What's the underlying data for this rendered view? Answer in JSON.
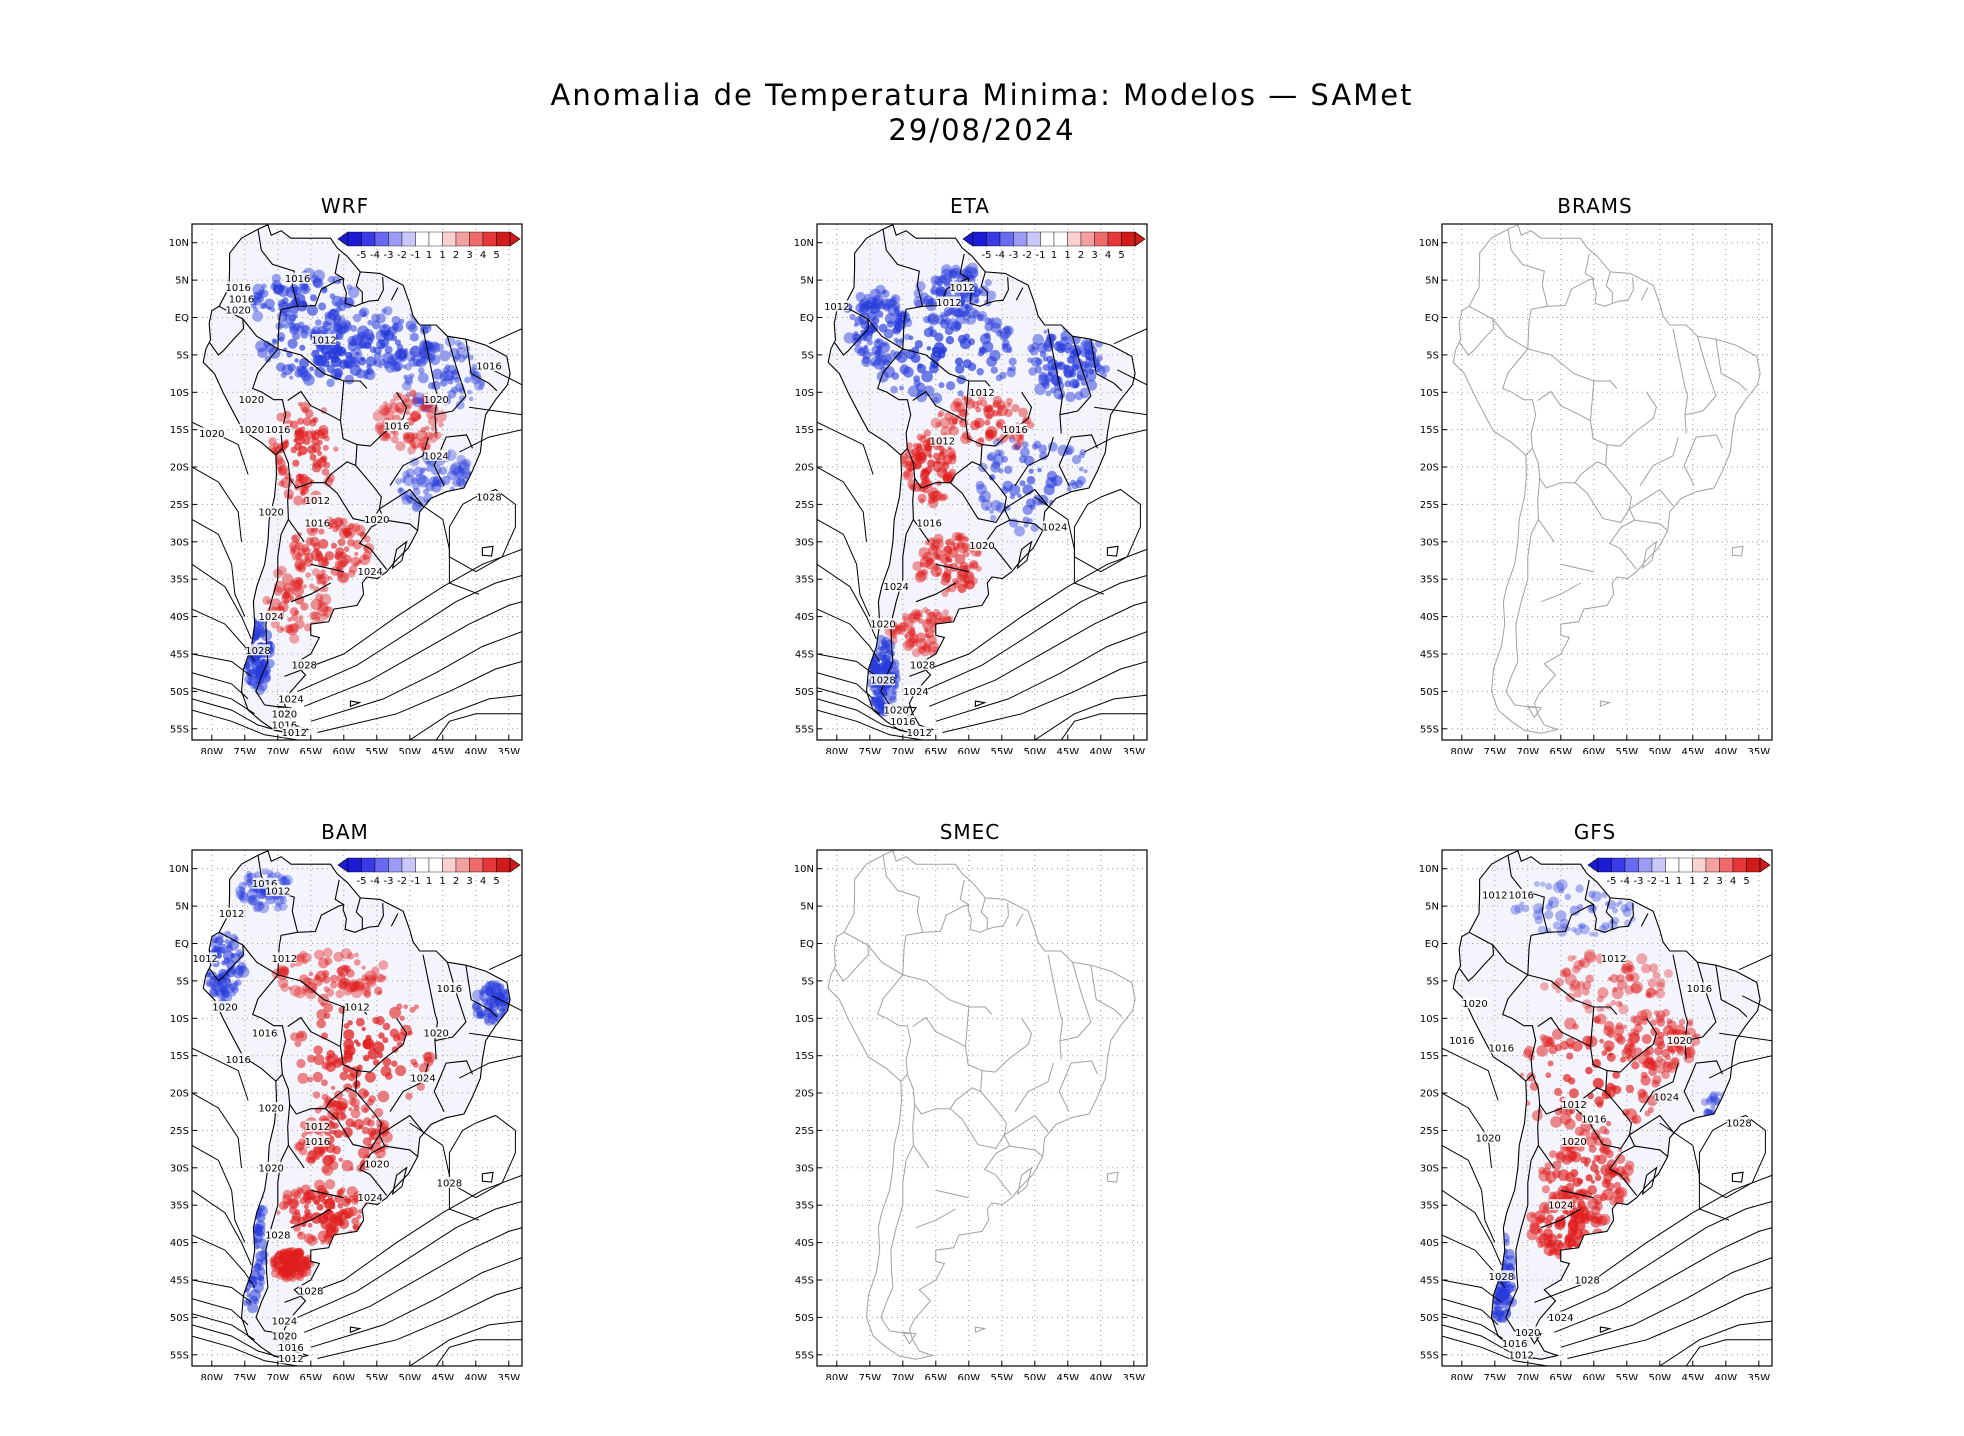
{
  "title": {
    "line1": "Anomalia de Temperatura Minima: Modelos — SAMet",
    "line2": "29/08/2024"
  },
  "axes": {
    "lat_labels": [
      "10N",
      "5N",
      "EQ",
      "5S",
      "10S",
      "15S",
      "20S",
      "25S",
      "30S",
      "35S",
      "40S",
      "45S",
      "50S",
      "55S"
    ],
    "lon_labels": [
      "80W",
      "75W",
      "70W",
      "65W",
      "60W",
      "55W",
      "50W",
      "45W",
      "40W",
      "35W"
    ],
    "lon_range": [
      -83,
      -33
    ],
    "lat_range": [
      -56.5,
      12.5
    ]
  },
  "colorbar": {
    "tick_labels": [
      "-5",
      "-4",
      "-3",
      "-2",
      "-1",
      "1",
      "1",
      "2",
      "3",
      "4",
      "5"
    ],
    "colors": [
      "#1b1bd6",
      "#3a3ae6",
      "#6a6af0",
      "#9b9bf5",
      "#c8c8fa",
      "#ffffff",
      "#ffffff",
      "#fad0d0",
      "#f5a0a0",
      "#ef6a6a",
      "#e63838",
      "#d11a1a"
    ]
  },
  "colors": {
    "cold": "#3344dd",
    "warm": "#e02424",
    "coast_data": "#000000",
    "coast_empty": "#a0a0a0"
  },
  "panels": [
    {
      "id": "wrf",
      "name": "WRF",
      "has_data": true,
      "contour_labels": [
        {
          "text": "1016",
          "lon": -67,
          "lat": 5.2
        },
        {
          "text": "1016",
          "lon": -76,
          "lat": 4
        },
        {
          "text": "1016",
          "lon": -75.5,
          "lat": 2.5
        },
        {
          "text": "1020",
          "lon": -76,
          "lat": 1
        },
        {
          "text": "1012",
          "lon": -63,
          "lat": -3
        },
        {
          "text": "1016",
          "lon": -38,
          "lat": -6.5
        },
        {
          "text": "1020",
          "lon": -74,
          "lat": -11
        },
        {
          "text": "1020",
          "lon": -46,
          "lat": -11
        },
        {
          "text": "1020",
          "lon": -80,
          "lat": -15.5
        },
        {
          "text": "1020",
          "lon": -74,
          "lat": -15
        },
        {
          "text": "1016",
          "lon": -70,
          "lat": -15
        },
        {
          "text": "1016",
          "lon": -52,
          "lat": -14.5
        },
        {
          "text": "1024",
          "lon": -46,
          "lat": -18.5
        },
        {
          "text": "1028",
          "lon": -38,
          "lat": -24
        },
        {
          "text": "1012",
          "lon": -64,
          "lat": -24.5
        },
        {
          "text": "1020",
          "lon": -71,
          "lat": -26
        },
        {
          "text": "1016",
          "lon": -64,
          "lat": -27.5
        },
        {
          "text": "1020",
          "lon": -55,
          "lat": -27
        },
        {
          "text": "1024",
          "lon": -56,
          "lat": -34
        },
        {
          "text": "1024",
          "lon": -71,
          "lat": -40
        },
        {
          "text": "1028",
          "lon": -73,
          "lat": -44.5
        },
        {
          "text": "1028",
          "lon": -66,
          "lat": -46.5
        },
        {
          "text": "1024",
          "lon": -68,
          "lat": -51
        },
        {
          "text": "1020",
          "lon": -69,
          "lat": -53
        },
        {
          "text": "1016",
          "lon": -69,
          "lat": -54.5
        },
        {
          "text": "1012",
          "lon": -67.5,
          "lat": -55.5
        }
      ],
      "anomaly_regions": [
        {
          "sign": "cold",
          "lon": -66,
          "lat": 2,
          "rlon": 8,
          "rlat": 4,
          "strength": 0.8
        },
        {
          "sign": "cold",
          "lon": -62,
          "lat": -5,
          "rlon": 11,
          "rlat": 4,
          "strength": 1.0
        },
        {
          "sign": "cold",
          "lon": -54,
          "lat": -3,
          "rlon": 9,
          "rlat": 4,
          "strength": 0.75
        },
        {
          "sign": "cold",
          "lon": -45,
          "lat": -8,
          "rlon": 6,
          "rlat": 5,
          "strength": 0.55
        },
        {
          "sign": "cold",
          "lon": -46,
          "lat": -22,
          "rlon": 6,
          "rlat": 4,
          "strength": 0.45
        },
        {
          "sign": "warm",
          "lon": -66,
          "lat": -18,
          "rlon": 5,
          "rlat": 7,
          "strength": 0.85
        },
        {
          "sign": "warm",
          "lon": -62,
          "lat": -31,
          "rlon": 6,
          "rlat": 4,
          "strength": 0.75
        },
        {
          "sign": "warm",
          "lon": -67,
          "lat": -38,
          "rlon": 5,
          "rlat": 5,
          "strength": 0.55
        },
        {
          "sign": "warm",
          "lon": -50,
          "lat": -14,
          "rlon": 5,
          "rlat": 4,
          "strength": 0.5
        },
        {
          "sign": "cold",
          "lon": -73,
          "lat": -45,
          "rlon": 2,
          "rlat": 5,
          "strength": 0.9
        }
      ]
    },
    {
      "id": "eta",
      "name": "ETA",
      "has_data": true,
      "contour_labels": [
        {
          "text": "1012",
          "lon": -80,
          "lat": 1.5
        },
        {
          "text": "1012",
          "lon": -61,
          "lat": 4
        },
        {
          "text": "1012",
          "lon": -63,
          "lat": 2
        },
        {
          "text": "1012",
          "lon": -58,
          "lat": -10
        },
        {
          "text": "1012",
          "lon": -64,
          "lat": -16.5
        },
        {
          "text": "1016",
          "lon": -53,
          "lat": -15
        },
        {
          "text": "1016",
          "lon": -66,
          "lat": -27.5
        },
        {
          "text": "1020",
          "lon": -58,
          "lat": -30.5
        },
        {
          "text": "1024",
          "lon": -47,
          "lat": -28
        },
        {
          "text": "1024",
          "lon": -71,
          "lat": -36
        },
        {
          "text": "1020",
          "lon": -73,
          "lat": -41
        },
        {
          "text": "1028",
          "lon": -67,
          "lat": -46.5
        },
        {
          "text": "1028",
          "lon": -73,
          "lat": -48.5
        },
        {
          "text": "1024",
          "lon": -68,
          "lat": -50
        },
        {
          "text": "1020",
          "lon": -71,
          "lat": -52.5
        },
        {
          "text": "1016",
          "lon": -70,
          "lat": -54
        },
        {
          "text": "1012",
          "lon": -67.5,
          "lat": -55.5
        }
      ],
      "anomaly_regions": [
        {
          "sign": "cold",
          "lon": -64,
          "lat": -5,
          "rlon": 12,
          "rlat": 6,
          "strength": 1.0
        },
        {
          "sign": "cold",
          "lon": -74,
          "lat": -1,
          "rlon": 5,
          "rlat": 5,
          "strength": 0.8
        },
        {
          "sign": "cold",
          "lon": -45,
          "lat": -6,
          "rlon": 6,
          "rlat": 5,
          "strength": 0.9
        },
        {
          "sign": "cold",
          "lon": -50,
          "lat": -22,
          "rlon": 9,
          "rlat": 7,
          "strength": 0.7
        },
        {
          "sign": "cold",
          "lon": -62,
          "lat": 3,
          "rlon": 6,
          "rlat": 4,
          "strength": 0.7
        },
        {
          "sign": "warm",
          "lon": -66,
          "lat": -20,
          "rlon": 4,
          "rlat": 5,
          "strength": 0.85
        },
        {
          "sign": "warm",
          "lon": -57,
          "lat": -14,
          "rlon": 8,
          "rlat": 4,
          "strength": 0.6
        },
        {
          "sign": "warm",
          "lon": -63,
          "lat": -33,
          "rlon": 5,
          "rlat": 4,
          "strength": 0.7
        },
        {
          "sign": "warm",
          "lon": -66,
          "lat": -42,
          "rlon": 6,
          "rlat": 3,
          "strength": 0.55
        },
        {
          "sign": "cold",
          "lon": -73,
          "lat": -48,
          "rlon": 2,
          "rlat": 5,
          "strength": 0.9
        }
      ]
    },
    {
      "id": "brams",
      "name": "BRAMS",
      "has_data": false,
      "contour_labels": [],
      "anomaly_regions": []
    },
    {
      "id": "bam",
      "name": "BAM",
      "has_data": true,
      "contour_labels": [
        {
          "text": "1016",
          "lon": -72,
          "lat": 8
        },
        {
          "text": "1012",
          "lon": -70,
          "lat": 7
        },
        {
          "text": "1012",
          "lon": -77,
          "lat": 4
        },
        {
          "text": "1012",
          "lon": -81,
          "lat": -2
        },
        {
          "text": "1012",
          "lon": -69,
          "lat": -2
        },
        {
          "text": "1020",
          "lon": -78,
          "lat": -8.5
        },
        {
          "text": "1012",
          "lon": -58,
          "lat": -8.5
        },
        {
          "text": "1016",
          "lon": -44,
          "lat": -6
        },
        {
          "text": "1016",
          "lon": -72,
          "lat": -12
        },
        {
          "text": "1020",
          "lon": -46,
          "lat": -12
        },
        {
          "text": "1016",
          "lon": -76,
          "lat": -15.5
        },
        {
          "text": "1024",
          "lon": -48,
          "lat": -18
        },
        {
          "text": "1020",
          "lon": -71,
          "lat": -22
        },
        {
          "text": "1012",
          "lon": -64,
          "lat": -24.5
        },
        {
          "text": "1016",
          "lon": -64,
          "lat": -26.5
        },
        {
          "text": "1020",
          "lon": -71,
          "lat": -30
        },
        {
          "text": "1020",
          "lon": -55,
          "lat": -29.5
        },
        {
          "text": "1028",
          "lon": -44,
          "lat": -32
        },
        {
          "text": "1024",
          "lon": -56,
          "lat": -34
        },
        {
          "text": "1028",
          "lon": -70,
          "lat": -39
        },
        {
          "text": "1028",
          "lon": -65,
          "lat": -46.5
        },
        {
          "text": "1024",
          "lon": -69,
          "lat": -50.5
        },
        {
          "text": "1020",
          "lon": -69,
          "lat": -52.5
        },
        {
          "text": "1016",
          "lon": -68,
          "lat": -54
        },
        {
          "text": "1012",
          "lon": -68,
          "lat": -55.5
        }
      ],
      "anomaly_regions": [
        {
          "sign": "warm",
          "lon": -57,
          "lat": -14,
          "rlon": 11,
          "rlat": 9,
          "strength": 1.0
        },
        {
          "sign": "warm",
          "lon": -62,
          "lat": -4,
          "rlon": 9,
          "rlat": 3,
          "strength": 0.55
        },
        {
          "sign": "warm",
          "lon": -60,
          "lat": -26,
          "rlon": 7,
          "rlat": 5,
          "strength": 0.9
        },
        {
          "sign": "warm",
          "lon": -63,
          "lat": -36,
          "rlon": 7,
          "rlat": 4,
          "strength": 0.95
        },
        {
          "sign": "warm",
          "lon": -68,
          "lat": -43,
          "rlon": 3,
          "rlat": 2,
          "strength": 0.8
        },
        {
          "sign": "cold",
          "lon": -78,
          "lat": -3,
          "rlon": 3,
          "rlat": 5,
          "strength": 0.7
        },
        {
          "sign": "cold",
          "lon": -74,
          "lat": -40,
          "rlon": 2,
          "rlat": 10,
          "strength": 0.9
        },
        {
          "sign": "cold",
          "lon": -37,
          "lat": -8,
          "rlon": 3,
          "rlat": 3,
          "strength": 0.6
        },
        {
          "sign": "cold",
          "lon": -72,
          "lat": 7,
          "rlon": 4,
          "rlat": 3,
          "strength": 0.4
        }
      ]
    },
    {
      "id": "smec",
      "name": "SMEC",
      "has_data": false,
      "contour_labels": [],
      "anomaly_regions": []
    },
    {
      "id": "gfs",
      "name": "GFS",
      "has_data": true,
      "contour_labels": [
        {
          "text": "1012",
          "lon": -75,
          "lat": 6.5
        },
        {
          "text": "1016",
          "lon": -71,
          "lat": 6.5
        },
        {
          "text": "1012",
          "lon": -57,
          "lat": -2
        },
        {
          "text": "1020",
          "lon": -78,
          "lat": -8
        },
        {
          "text": "1016",
          "lon": -44,
          "lat": -6
        },
        {
          "text": "1016",
          "lon": -80,
          "lat": -13
        },
        {
          "text": "1016",
          "lon": -74,
          "lat": -14
        },
        {
          "text": "1020",
          "lon": -47,
          "lat": -13
        },
        {
          "text": "1024",
          "lon": -49,
          "lat": -20.5
        },
        {
          "text": "1028",
          "lon": -38,
          "lat": -24
        },
        {
          "text": "1012",
          "lon": -63,
          "lat": -21.5
        },
        {
          "text": "1016",
          "lon": -60,
          "lat": -23.5
        },
        {
          "text": "1020",
          "lon": -63,
          "lat": -26.5
        },
        {
          "text": "1020",
          "lon": -76,
          "lat": -26
        },
        {
          "text": "1024",
          "lon": -65,
          "lat": -35
        },
        {
          "text": "1028",
          "lon": -74,
          "lat": -44.5
        },
        {
          "text": "1028",
          "lon": -61,
          "lat": -45
        },
        {
          "text": "1024",
          "lon": -65,
          "lat": -50
        },
        {
          "text": "1020",
          "lon": -70,
          "lat": -52
        },
        {
          "text": "1016",
          "lon": -72,
          "lat": -53.5
        },
        {
          "text": "1012",
          "lon": -71,
          "lat": -55
        }
      ],
      "anomaly_regions": [
        {
          "sign": "warm",
          "lon": -60,
          "lat": -18,
          "rlon": 11,
          "rlat": 8,
          "strength": 0.95
        },
        {
          "sign": "warm",
          "lon": -61,
          "lat": -31,
          "rlon": 7,
          "rlat": 5,
          "strength": 0.9
        },
        {
          "sign": "warm",
          "lon": -64,
          "lat": -38,
          "rlon": 6,
          "rlat": 4,
          "strength": 1.0
        },
        {
          "sign": "warm",
          "lon": -50,
          "lat": -13,
          "rlon": 6,
          "rlat": 4,
          "strength": 0.7
        },
        {
          "sign": "warm",
          "lon": -58,
          "lat": -5,
          "rlon": 10,
          "rlat": 4,
          "strength": 0.4
        },
        {
          "sign": "cold",
          "lon": -62,
          "lat": 5,
          "rlon": 10,
          "rlat": 4,
          "strength": 0.3
        },
        {
          "sign": "cold",
          "lon": -41,
          "lat": -23,
          "rlon": 3,
          "rlat": 3,
          "strength": 0.5
        },
        {
          "sign": "cold",
          "lon": -74,
          "lat": -45,
          "rlon": 2,
          "rlat": 6,
          "strength": 0.85
        }
      ]
    }
  ]
}
